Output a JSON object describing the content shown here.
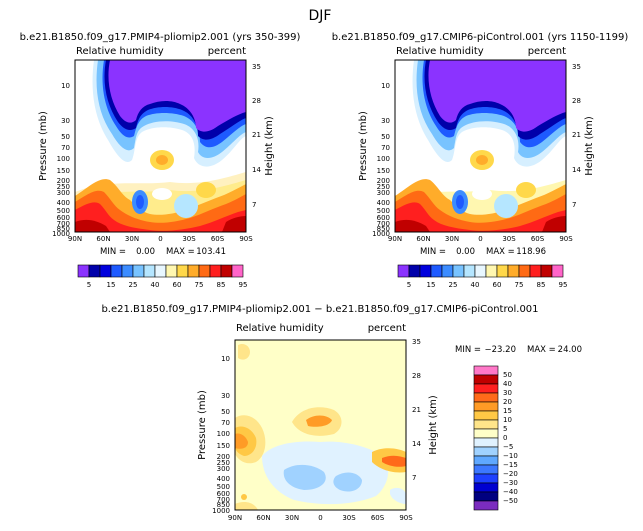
{
  "figure": {
    "title": "DJF"
  },
  "colors": {
    "humidity_scale": [
      "#8b33ff",
      "#0000aa",
      "#0000dd",
      "#1e5aff",
      "#3c8cff",
      "#78c3ff",
      "#b5e6ff",
      "#e8f7ff",
      "#fff7b0",
      "#ffd84a",
      "#ffac2a",
      "#ff6a14",
      "#ff1f1f",
      "#c00000",
      "#ff64c8"
    ],
    "diff_scale": [
      "#7b2cbf",
      "#000080",
      "#0000d0",
      "#1e40ff",
      "#3c78ff",
      "#5fa8ff",
      "#a0d2ff",
      "#e0f2ff",
      "#ffffc8",
      "#ffe58a",
      "#ffc845",
      "#ff9b26",
      "#ff6a1a",
      "#ff2020",
      "#c00000",
      "#ff78c8"
    ]
  },
  "chart_data": [
    {
      "type": "heatmap",
      "panel": "top-left",
      "title": "b.e21.B1850.f09_g17.PMIP4-pliomip2.001 (yrs 350-399)",
      "variable": "Relative humidity",
      "units": "percent",
      "xlabel": "",
      "ylabel": "Pressure (mb)",
      "ylabel_right": "Height (km)",
      "x_ticks": [
        "90N",
        "60N",
        "30N",
        "0",
        "30S",
        "60S",
        "90S"
      ],
      "y_ticks": [
        "10",
        "30",
        "50",
        "70",
        "100",
        "150",
        "200",
        "250",
        "300",
        "400",
        "500",
        "600",
        "700",
        "850",
        "1000"
      ],
      "y_ticks_right": [
        "35",
        "28",
        "21",
        "14",
        "7"
      ],
      "min_label": "MIN =",
      "min": "0.00",
      "max_label": "MAX =",
      "max": "103.41",
      "colorbar_labels": [
        "5",
        "15",
        "25",
        "40",
        "60",
        "75",
        "85",
        "95"
      ]
    },
    {
      "type": "heatmap",
      "panel": "top-right",
      "title": "b.e21.B1850.f09_g17.CMIP6-piControl.001 (yrs 1150-1199)",
      "variable": "Relative humidity",
      "units": "percent",
      "xlabel": "",
      "ylabel": "Pressure (mb)",
      "ylabel_right": "Height (km)",
      "x_ticks": [
        "90N",
        "60N",
        "30N",
        "0",
        "30S",
        "60S",
        "90S"
      ],
      "y_ticks": [
        "10",
        "30",
        "50",
        "70",
        "100",
        "150",
        "200",
        "250",
        "300",
        "400",
        "500",
        "600",
        "700",
        "850",
        "1000"
      ],
      "y_ticks_right": [
        "35",
        "28",
        "21",
        "14",
        "7"
      ],
      "min_label": "MIN =",
      "min": "0.00",
      "max_label": "MAX =",
      "max": "118.96",
      "colorbar_labels": [
        "5",
        "15",
        "25",
        "40",
        "60",
        "75",
        "85",
        "95"
      ]
    },
    {
      "type": "heatmap",
      "panel": "bottom",
      "title": "b.e21.B1850.f09_g17.PMIP4-pliomip2.001 − b.e21.B1850.f09_g17.CMIP6-piControl.001",
      "variable": "Relative humidity",
      "units": "percent",
      "xlabel": "",
      "ylabel": "Pressure (mb)",
      "ylabel_right": "Height (km)",
      "x_ticks": [
        "90N",
        "60N",
        "30N",
        "0",
        "30S",
        "60S",
        "90S"
      ],
      "y_ticks": [
        "10",
        "30",
        "50",
        "70",
        "100",
        "150",
        "200",
        "250",
        "300",
        "400",
        "500",
        "600",
        "700",
        "850",
        "1000"
      ],
      "y_ticks_right": [
        "35",
        "28",
        "21",
        "14",
        "7"
      ],
      "min_label": "MIN =",
      "min": "−23.20",
      "max_label": "MAX =",
      "max": "24.00",
      "colorbar_labels": [
        "50",
        "40",
        "30",
        "20",
        "15",
        "10",
        "5",
        "0",
        "−5",
        "−10",
        "−15",
        "−20",
        "−30",
        "−40",
        "−50"
      ]
    }
  ]
}
